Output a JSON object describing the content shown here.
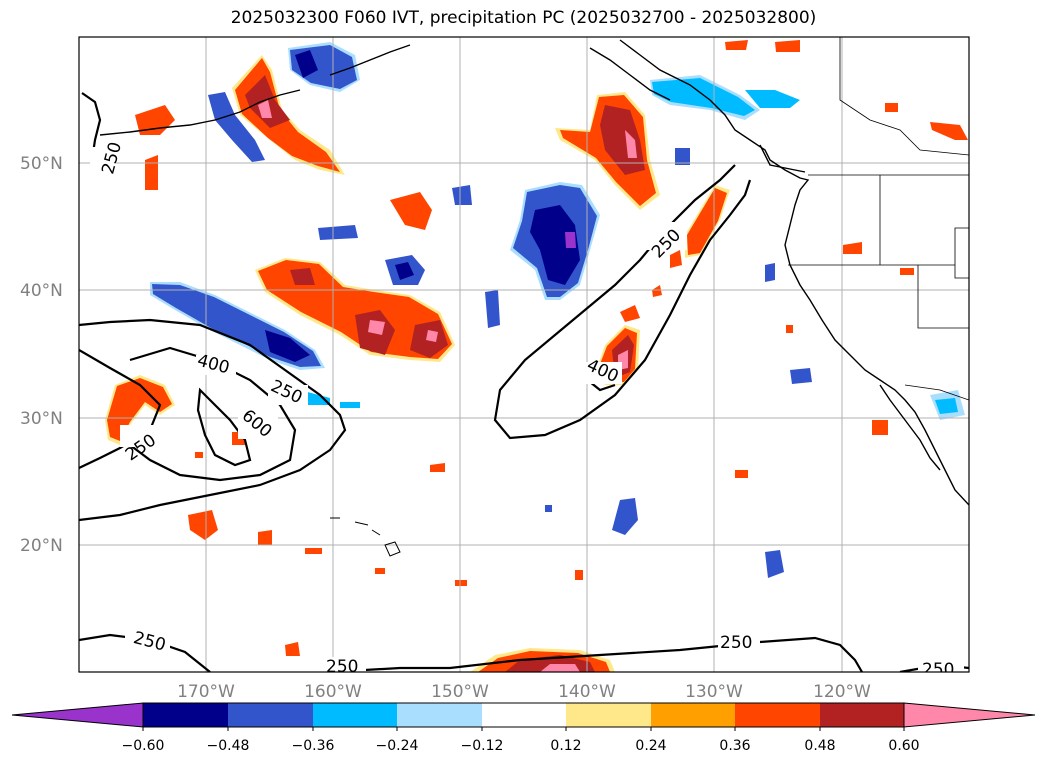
{
  "title": "2025032300 F060 IVT, precipitation PC (2025032700 - 2025032800)",
  "map": {
    "lon_range": [
      -180,
      -110
    ],
    "lat_range": [
      10,
      60
    ],
    "lat_labels": [
      "50°N",
      "40°N",
      "30°N",
      "20°N"
    ],
    "lat_values": [
      50,
      40,
      30,
      20
    ],
    "lon_labels": [
      "170°W",
      "160°W",
      "150°W",
      "140°W",
      "130°W",
      "120°W"
    ],
    "lon_values": [
      -170,
      -160,
      -150,
      -140,
      -130,
      -120
    ],
    "grid": true,
    "ivt_contour_labels": [
      "250",
      "400",
      "250",
      "600",
      "250",
      "250",
      "400",
      "250",
      "250",
      "250",
      "250"
    ],
    "ivt_levels": [
      250,
      400,
      600
    ]
  },
  "colorbar": {
    "ticks": [
      "−0.60",
      "−0.48",
      "−0.36",
      "−0.24",
      "−0.12",
      "0.12",
      "0.24",
      "0.36",
      "0.48",
      "0.60"
    ],
    "colors": [
      "#9933cc",
      "#00008b",
      "#3355cc",
      "#00bbff",
      "#aadeff",
      "#ffffff",
      "#ffe88a",
      "#ffa000",
      "#ff4500",
      "#b22222",
      "#ff88aa"
    ]
  }
}
